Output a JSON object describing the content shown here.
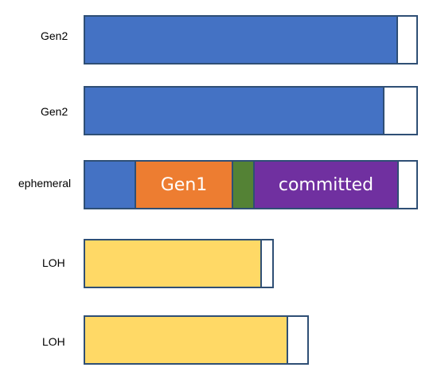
{
  "colors": {
    "gen2": "#4472c4",
    "gen1": "#ed7d31",
    "gen0": "#548235",
    "committed": "#7030a0",
    "loh": "#ffd966",
    "free": "#ffffff",
    "outline": "#2f4f75"
  },
  "rows": [
    {
      "label": "Gen2",
      "segments": [
        {
          "text": "",
          "color_key": "gen2"
        },
        {
          "text": "",
          "color_key": "free"
        }
      ]
    },
    {
      "label": "Gen2",
      "segments": [
        {
          "text": "",
          "color_key": "gen2"
        },
        {
          "text": "",
          "color_key": "free"
        }
      ]
    },
    {
      "label": "ephemeral",
      "segments": [
        {
          "text": "",
          "color_key": "gen2"
        },
        {
          "text": "Gen1",
          "color_key": "gen1"
        },
        {
          "text": "",
          "color_key": "gen0"
        },
        {
          "text": "committed",
          "color_key": "committed"
        },
        {
          "text": "",
          "color_key": "free"
        }
      ]
    },
    {
      "label": "LOH",
      "segments": [
        {
          "text": "",
          "color_key": "loh"
        },
        {
          "text": "",
          "color_key": "free"
        }
      ]
    },
    {
      "label": "LOH",
      "segments": [
        {
          "text": "",
          "color_key": "loh"
        },
        {
          "text": "",
          "color_key": "free"
        }
      ]
    }
  ]
}
